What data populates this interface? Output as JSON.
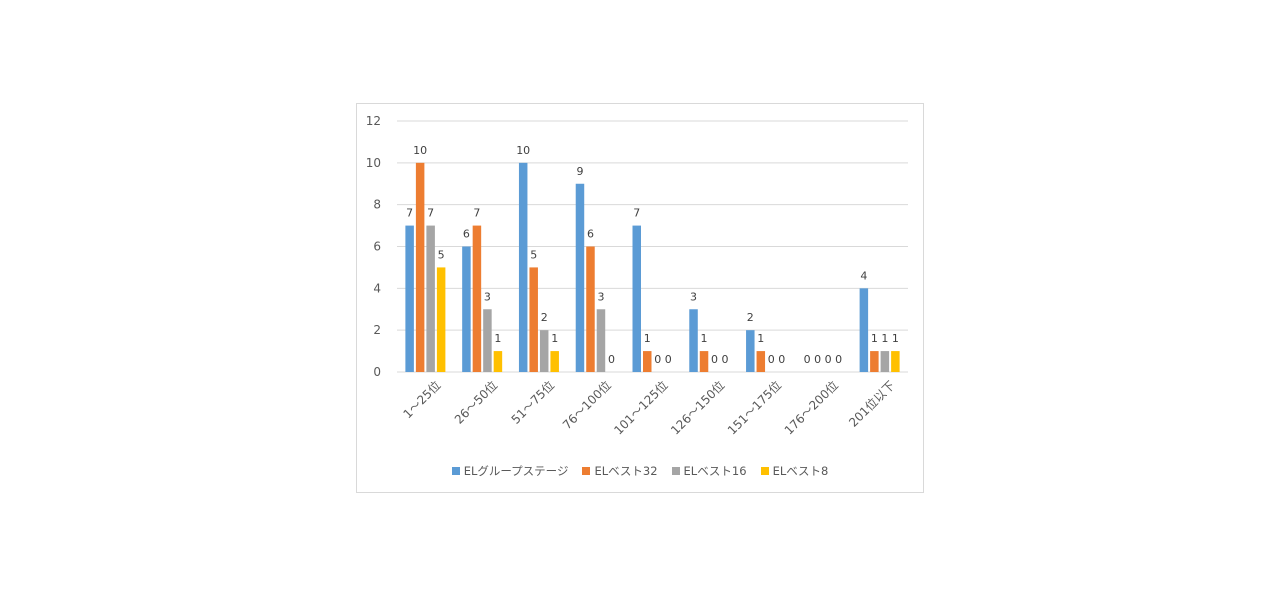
{
  "chart_data": {
    "type": "bar",
    "categories": [
      "1～25位",
      "26～50位",
      "51～75位",
      "76～100位",
      "101～125位",
      "126～150位",
      "151～175位",
      "176～200位",
      "201位以下"
    ],
    "series": [
      {
        "name": "ELグループステージ",
        "color": "#5B9BD5",
        "values": [
          7,
          6,
          10,
          9,
          7,
          3,
          2,
          0,
          4
        ]
      },
      {
        "name": "ELベスト32",
        "color": "#ED7D31",
        "values": [
          10,
          7,
          5,
          6,
          1,
          1,
          1,
          0,
          1
        ]
      },
      {
        "name": "ELベスト16",
        "color": "#A5A5A5",
        "values": [
          7,
          3,
          2,
          3,
          0,
          0,
          0,
          0,
          1
        ]
      },
      {
        "name": "ELベスト8",
        "color": "#FFC000",
        "values": [
          5,
          1,
          1,
          0,
          0,
          0,
          0,
          0,
          1
        ]
      }
    ],
    "ylim": [
      0,
      12
    ],
    "yticks": [
      0,
      2,
      4,
      6,
      8,
      10,
      12
    ],
    "title": "",
    "xlabel": "",
    "ylabel": "",
    "grid": true,
    "legend_position": "bottom"
  }
}
